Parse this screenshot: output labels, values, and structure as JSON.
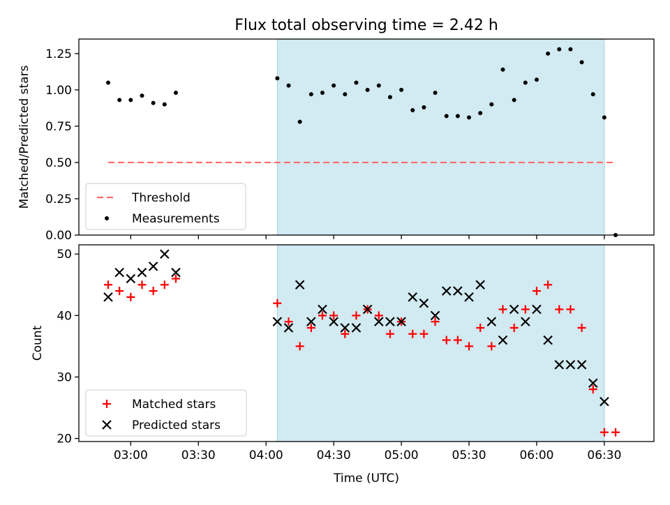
{
  "chart_data": {
    "title": "Flux total observing time = 2.42 h",
    "xlabel": "Time (UTC)",
    "x_tick_labels": [
      "03:00",
      "03:30",
      "04:00",
      "04:30",
      "05:00",
      "05:30",
      "06:00",
      "06:30"
    ],
    "panels": [
      {
        "type": "scatter",
        "ylabel": "Matched/Predicted stars",
        "ylim": [
          0,
          1.35
        ],
        "yticks": [
          "0.00",
          "0.25",
          "0.50",
          "0.75",
          "1.00",
          "1.25"
        ],
        "shaded_interval": [
          "04:05",
          "06:30"
        ],
        "shade_color": "#add8e6",
        "threshold": {
          "name": "Threshold",
          "value": 0.5,
          "x_range": [
            "02:50",
            "06:35"
          ],
          "color": "#ff6b6b"
        },
        "series": [
          {
            "name": "Measurements",
            "color": "#000000",
            "x": [
              "02:50",
              "02:55",
              "03:00",
              "03:05",
              "03:10",
              "03:15",
              "03:20",
              "04:05",
              "04:10",
              "04:15",
              "04:20",
              "04:25",
              "04:30",
              "04:35",
              "04:40",
              "04:45",
              "04:50",
              "04:55",
              "05:00",
              "05:05",
              "05:10",
              "05:15",
              "05:20",
              "05:25",
              "05:30",
              "05:35",
              "05:40",
              "05:45",
              "05:50",
              "05:55",
              "06:00",
              "06:05",
              "06:10",
              "06:15",
              "06:20",
              "06:25",
              "06:30",
              "06:35"
            ],
            "y": [
              1.05,
              0.93,
              0.93,
              0.96,
              0.91,
              0.9,
              0.98,
              1.08,
              1.03,
              0.78,
              0.97,
              0.98,
              1.03,
              0.97,
              1.05,
              1.0,
              1.03,
              0.95,
              1.0,
              0.86,
              0.88,
              0.98,
              0.82,
              0.82,
              0.81,
              0.84,
              0.9,
              1.14,
              0.93,
              1.05,
              1.07,
              1.25,
              1.28,
              1.28,
              1.19,
              0.97,
              0.81,
              0.0
            ]
          }
        ],
        "legend": [
          "Threshold",
          "Measurements"
        ],
        "legend_position": "lower-left"
      },
      {
        "type": "scatter",
        "ylabel": "Count",
        "ylim": [
          19.5,
          51.5
        ],
        "yticks": [
          "20",
          "30",
          "40",
          "50"
        ],
        "shaded_interval": [
          "04:05",
          "06:30"
        ],
        "shade_color": "#add8e6",
        "series": [
          {
            "name": "Matched stars",
            "marker": "plus",
            "color": "#ff0000",
            "x": [
              "02:50",
              "02:55",
              "03:00",
              "03:05",
              "03:10",
              "03:15",
              "03:20",
              "04:05",
              "04:10",
              "04:15",
              "04:20",
              "04:25",
              "04:30",
              "04:35",
              "04:40",
              "04:45",
              "04:50",
              "04:55",
              "05:00",
              "05:05",
              "05:10",
              "05:15",
              "05:20",
              "05:25",
              "05:30",
              "05:35",
              "05:40",
              "05:45",
              "05:50",
              "05:55",
              "06:00",
              "06:05",
              "06:10",
              "06:15",
              "06:20",
              "06:25",
              "06:30",
              "06:35"
            ],
            "y": [
              45,
              44,
              43,
              45,
              44,
              45,
              46,
              42,
              39,
              35,
              38,
              40,
              40,
              37,
              40,
              41,
              40,
              37,
              39,
              37,
              37,
              39,
              36,
              36,
              35,
              38,
              35,
              41,
              38,
              41,
              44,
              45,
              41,
              41,
              38,
              28,
              21,
              21
            ]
          },
          {
            "name": "Predicted stars",
            "marker": "x",
            "color": "#000000",
            "x": [
              "02:50",
              "02:55",
              "03:00",
              "03:05",
              "03:10",
              "03:15",
              "03:20",
              "04:05",
              "04:10",
              "04:15",
              "04:20",
              "04:25",
              "04:30",
              "04:35",
              "04:40",
              "04:45",
              "04:50",
              "04:55",
              "05:00",
              "05:05",
              "05:10",
              "05:15",
              "05:20",
              "05:25",
              "05:30",
              "05:35",
              "05:40",
              "05:45",
              "05:50",
              "05:55",
              "06:00",
              "06:05",
              "06:10",
              "06:15",
              "06:20",
              "06:25",
              "06:30"
            ],
            "y": [
              43,
              47,
              46,
              47,
              48,
              50,
              47,
              39,
              38,
              45,
              39,
              41,
              39,
              38,
              38,
              41,
              39,
              39,
              39,
              43,
              42,
              40,
              44,
              44,
              43,
              45,
              39,
              36,
              41,
              39,
              41,
              36,
              32,
              32,
              32,
              29,
              26
            ]
          }
        ],
        "legend": [
          "Matched stars",
          "Predicted stars"
        ],
        "legend_position": "lower-left"
      }
    ]
  }
}
